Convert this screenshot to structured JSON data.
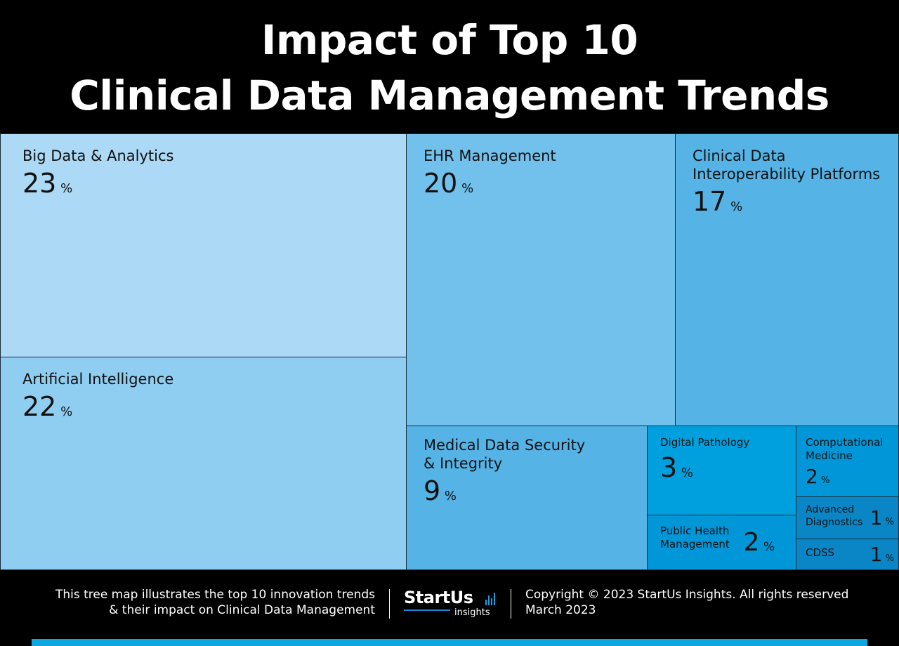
{
  "title": {
    "line1": "Impact of Top 10",
    "line2": "Clinical Data Management Trends"
  },
  "chart_data": {
    "type": "treemap",
    "unit": "%",
    "items": [
      {
        "label": "Big Data & Analytics",
        "value": 23,
        "color": "#acd9f5"
      },
      {
        "label": "Artificial Intelligence",
        "value": 22,
        "color": "#8fcdf1"
      },
      {
        "label": "EHR Management",
        "value": 20,
        "color": "#72c1ec"
      },
      {
        "label": "Clinical Data\nInteroperability Platforms",
        "value": 17,
        "color": "#55b3e6"
      },
      {
        "label": "Medical Data Security\n& Integrity",
        "value": 9,
        "color": "#55b3e6"
      },
      {
        "label": "Digital Pathology",
        "value": 3,
        "color": "#00a0de"
      },
      {
        "label": "Computational\nMedicine",
        "value": 2,
        "color": "#0096d8"
      },
      {
        "label": "Public Health\nManagement",
        "value": 2,
        "color": "#0096d8"
      },
      {
        "label": "Advanced\nDiagnostics",
        "value": 1,
        "color": "#0a86c6"
      },
      {
        "label": "CDSS",
        "value": 1,
        "color": "#0a86c6"
      }
    ]
  },
  "footer": {
    "description_line1": "This tree map illustrates the top 10 innovation trends",
    "description_line2": "& their impact on Clinical Data Management",
    "logo_brand": "StartUs",
    "logo_sub": "insights",
    "copyright": "Copyright © 2023 StartUs Insights. All rights reserved",
    "date": "March 2023"
  },
  "colors": {
    "background": "#000000",
    "accent_bar": "#0aa7e0"
  }
}
